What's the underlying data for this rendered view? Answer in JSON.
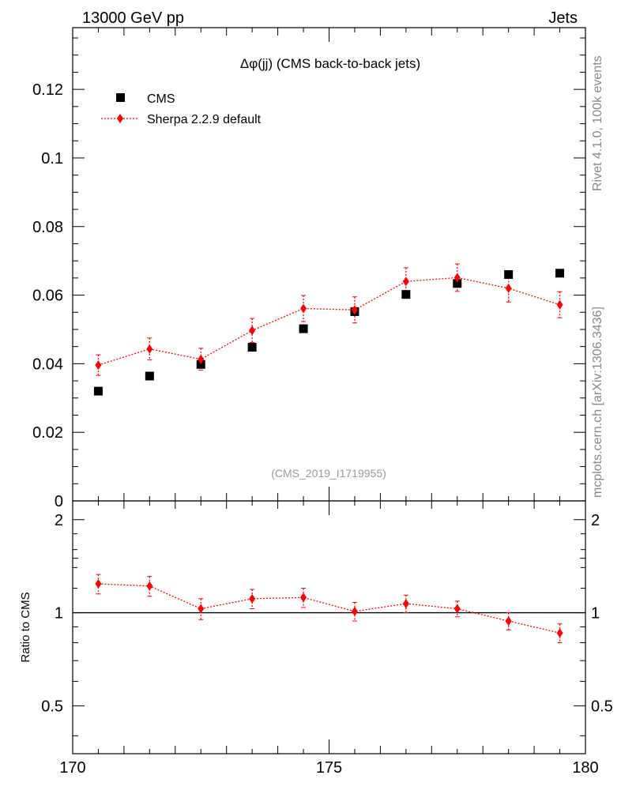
{
  "header": {
    "energy_label": "13000 GeV pp",
    "process_label": "Jets"
  },
  "side_labels": {
    "rivet": "Rivet 4.1.0,  100k events",
    "source": "mcplots.cern.ch [arXiv:1306.3436]"
  },
  "colors": {
    "data": "#000000",
    "mc": "#ff0000",
    "watermark": "#999999",
    "side_text": "#888888"
  },
  "chart_data": [
    {
      "type": "scatter",
      "panel": "main",
      "title": "Δφ(jj) (CMS back-to-back jets)",
      "watermark": "(CMS_2019_I1719955)",
      "xlabel": "",
      "ylabel": "",
      "xlim": [
        170,
        180
      ],
      "ylim": [
        0,
        0.138
      ],
      "y_tick_labels": [
        "0",
        "0.02",
        "0.04",
        "0.06",
        "0.08",
        "0.1",
        "0.12"
      ],
      "y_tick_values": [
        0,
        0.02,
        0.04,
        0.06,
        0.08,
        0.1,
        0.12
      ],
      "legend_position": "top-left",
      "series": [
        {
          "name": "CMS",
          "style": "square-markers",
          "x": [
            170.5,
            171.5,
            172.5,
            173.5,
            174.5,
            175.5,
            176.5,
            177.5,
            178.5,
            179.5
          ],
          "values": [
            0.032,
            0.0364,
            0.0398,
            0.0448,
            0.0502,
            0.0552,
            0.0602,
            0.0634,
            0.066,
            0.0664
          ]
        },
        {
          "name": "Sherpa 2.2.9 default",
          "style": "diamond-dotted-line",
          "x": [
            170.5,
            171.5,
            172.5,
            173.5,
            174.5,
            175.5,
            176.5,
            177.5,
            178.5,
            179.5
          ],
          "values": [
            0.0396,
            0.0443,
            0.0413,
            0.0497,
            0.0561,
            0.0557,
            0.064,
            0.0651,
            0.062,
            0.0572
          ],
          "errors": [
            0.003,
            0.0032,
            0.0032,
            0.0035,
            0.0038,
            0.0038,
            0.004,
            0.004,
            0.004,
            0.0038
          ]
        }
      ]
    },
    {
      "type": "scatter",
      "panel": "ratio",
      "ylabel": "Ratio to CMS",
      "xlim": [
        170,
        180
      ],
      "ylim": [
        0.35,
        2.3
      ],
      "reference_line": 1,
      "x_tick_labels": [
        "170",
        "175",
        "180"
      ],
      "x_tick_values": [
        170,
        175,
        180
      ],
      "y_tick_labels": [
        "0.5",
        "1",
        "2"
      ],
      "y_tick_values": [
        0.5,
        1,
        2
      ],
      "series": [
        {
          "name": "Sherpa 2.2.9 default / CMS",
          "x": [
            170.5,
            171.5,
            172.5,
            173.5,
            174.5,
            175.5,
            176.5,
            177.5,
            178.5,
            179.5
          ],
          "values": [
            1.24,
            1.22,
            1.03,
            1.11,
            1.12,
            1.01,
            1.07,
            1.03,
            0.94,
            0.86
          ],
          "errors": [
            0.09,
            0.09,
            0.08,
            0.08,
            0.08,
            0.07,
            0.07,
            0.06,
            0.06,
            0.06
          ]
        }
      ]
    }
  ]
}
